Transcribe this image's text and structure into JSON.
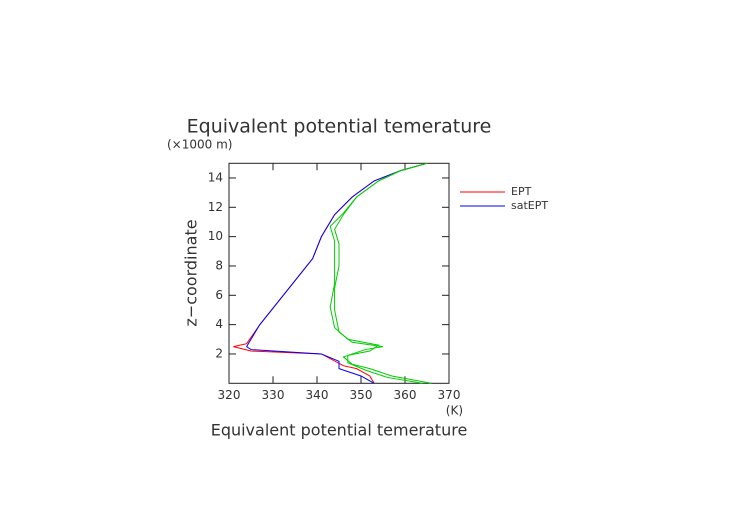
{
  "chart_data": {
    "type": "line",
    "title": "Equivalent potential temerature",
    "x_label": "Equivalent potential temerature",
    "x_unit": "(K)",
    "y_label": "z−coordinate",
    "y_unit": "(×1000 m)",
    "xlim": [
      320,
      370
    ],
    "xticks": [
      320,
      330,
      340,
      350,
      360,
      370
    ],
    "ylim": [
      0,
      15
    ],
    "yticks": [
      2,
      4,
      6,
      8,
      10,
      12,
      14
    ],
    "series": [
      {
        "name": "EPT",
        "color": "#ff0000",
        "x": [
          353,
          352,
          349,
          346,
          341,
          325,
          321,
          324,
          327,
          331,
          335,
          339,
          341,
          344,
          348,
          353,
          359,
          365
        ],
        "values": [
          0,
          0.5,
          1,
          1.2,
          2,
          2.2,
          2.5,
          2.7,
          4,
          5.5,
          7,
          8.5,
          10,
          11.5,
          12.7,
          13.8,
          14.5,
          15
        ]
      },
      {
        "name": "satEPT",
        "color": "#0000ff",
        "x": [
          353,
          350,
          345,
          345,
          341,
          325,
          324,
          327,
          331,
          335,
          339,
          341,
          344,
          348,
          353,
          359,
          365
        ],
        "values": [
          0,
          0.5,
          1,
          1.5,
          2,
          2.3,
          2.5,
          4,
          5.5,
          7,
          8.5,
          10,
          11.5,
          12.7,
          13.8,
          14.5,
          15
        ]
      },
      {
        "color": "#00cc00",
        "x": [
          366,
          357,
          352,
          348,
          346,
          351,
          355,
          348,
          345,
          344,
          344,
          345,
          345,
          344,
          346,
          349,
          354,
          359,
          365
        ],
        "values": [
          0,
          0.5,
          1,
          1.3,
          1.8,
          2.3,
          2.5,
          2.8,
          3.5,
          5,
          6.5,
          8,
          9.5,
          10.5,
          11.5,
          12.7,
          13.8,
          14.5,
          15
        ]
      },
      {
        "color": "#00cc00",
        "x": [
          364,
          356,
          351,
          347,
          347,
          352,
          354,
          347,
          344,
          343,
          344,
          344,
          344,
          343,
          346,
          349,
          354,
          359,
          365
        ],
        "values": [
          0,
          0.4,
          0.9,
          1.4,
          1.9,
          2.2,
          2.6,
          3,
          3.8,
          5.2,
          6.8,
          8.3,
          9.7,
          10.7,
          11.6,
          12.7,
          13.8,
          14.5,
          15
        ]
      }
    ]
  }
}
